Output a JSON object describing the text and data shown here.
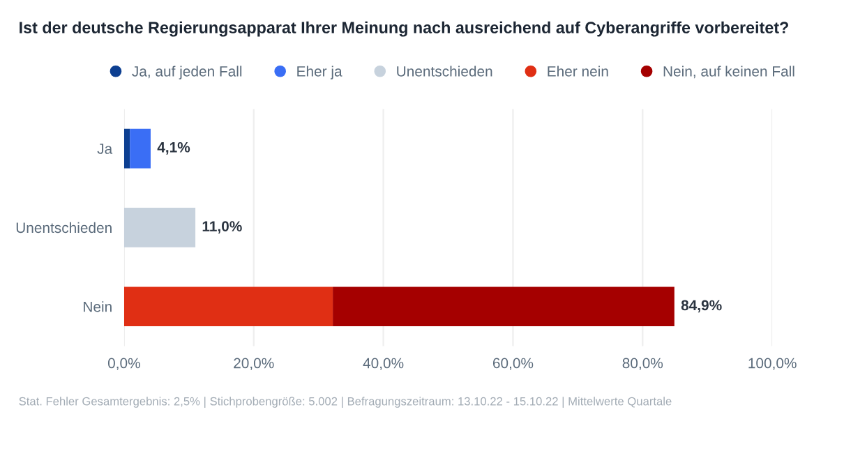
{
  "chart_data": {
    "type": "bar",
    "orientation": "horizontal",
    "stacked": true,
    "title": "Ist der deutsche Regierungsapparat Ihrer Meinung nach ausreichend auf Cyberangriffe vorbereitet?",
    "categories": [
      "Ja",
      "Unentschieden",
      "Nein"
    ],
    "series": [
      {
        "name": "Ja, auf jeden Fall",
        "color": "#0d3f91",
        "values": [
          0.9,
          null,
          null
        ]
      },
      {
        "name": "Eher ja",
        "color": "#3a6ef5",
        "values": [
          3.2,
          null,
          null
        ]
      },
      {
        "name": "Unentschieden",
        "color": "#c7d2dd",
        "values": [
          null,
          11.0,
          null
        ]
      },
      {
        "name": "Eher nein",
        "color": "#e02f14",
        "values": [
          null,
          null,
          32.2
        ]
      },
      {
        "name": "Nein, auf keinen Fall",
        "color": "#a50000",
        "values": [
          null,
          null,
          52.7
        ]
      }
    ],
    "totals": [
      "4,1%",
      "11,0%",
      "84,9%"
    ],
    "xlim": [
      0,
      100
    ],
    "xticks": [
      {
        "value": 0,
        "label": "0,0%"
      },
      {
        "value": 20,
        "label": "20,0%"
      },
      {
        "value": 40,
        "label": "40,0%"
      },
      {
        "value": 60,
        "label": "60,0%"
      },
      {
        "value": 80,
        "label": "80,0%"
      },
      {
        "value": 100,
        "label": "100,0%"
      }
    ],
    "grid": "x",
    "legend": "top",
    "marker": "circle",
    "annotations": [
      "Stat. Fehler Gesamtergebnis: 2,5% | Stichprobengröße: 5.002 | Befragungszeitraum: 13.10.22 - 15.10.22 | Mittelwerte Quartale"
    ]
  }
}
